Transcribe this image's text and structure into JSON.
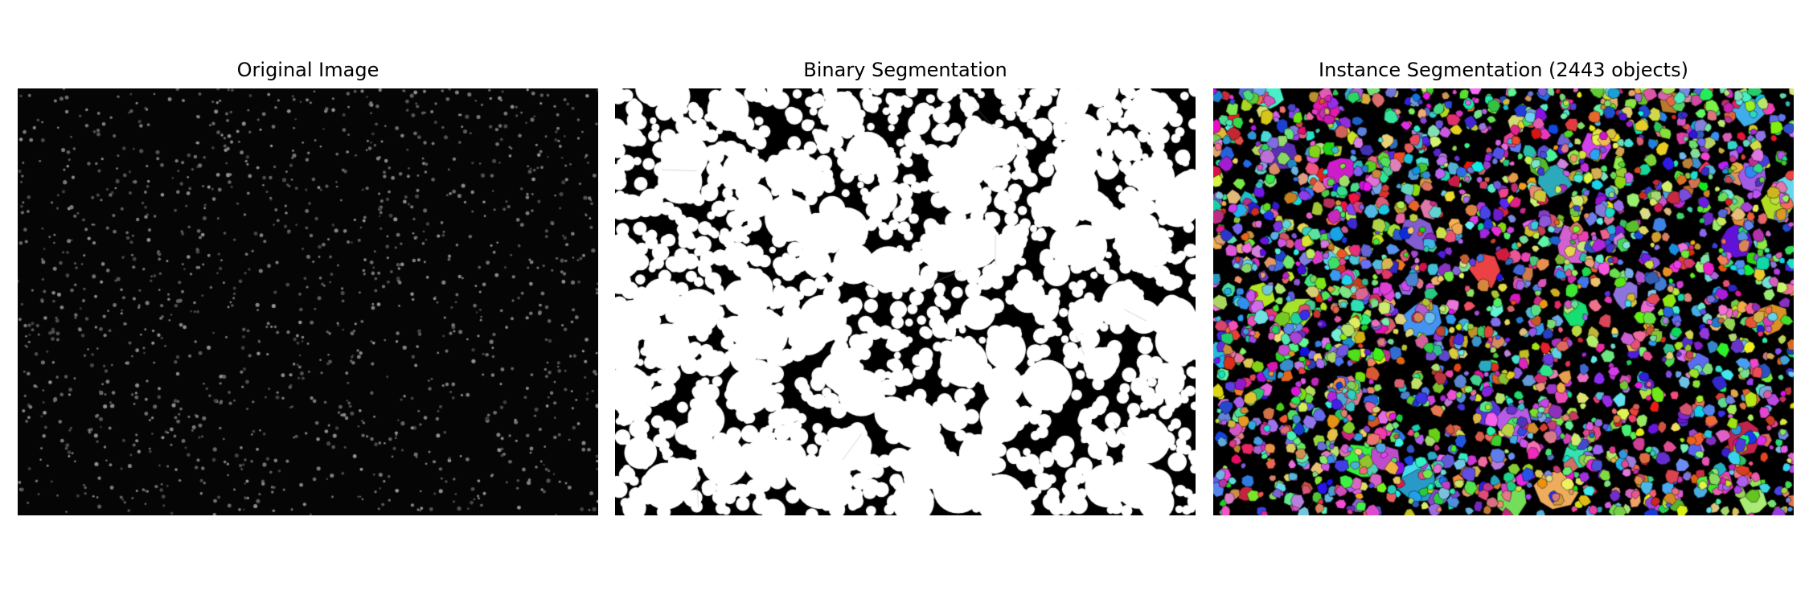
{
  "panels": [
    {
      "title": "Original Image"
    },
    {
      "title": "Binary Segmentation"
    },
    {
      "title": "Instance Segmentation (2443 objects)"
    }
  ],
  "colors": {
    "background": "#ffffff",
    "image_background": "#000000"
  }
}
